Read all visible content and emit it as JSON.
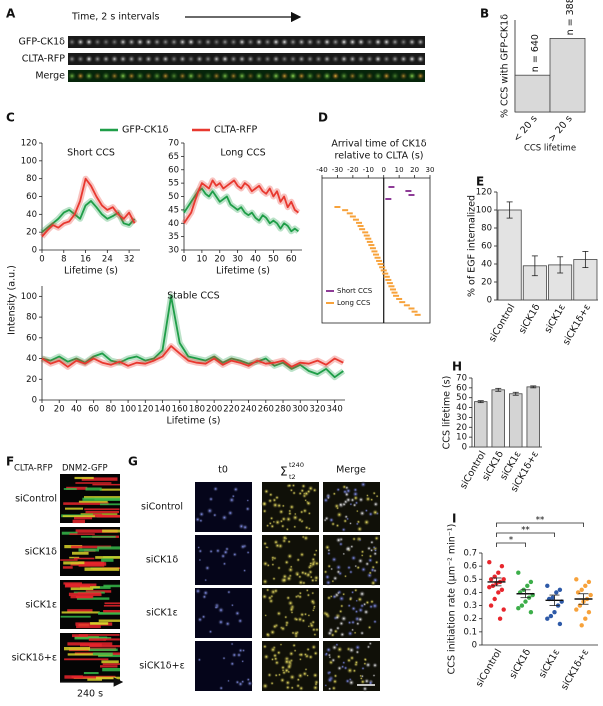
{
  "figure": {
    "A": {
      "panel": "A",
      "caption": "Time, 2 s intervals",
      "rows": [
        "GFP-CK1δ",
        "CLTA-RFP",
        "Merge"
      ]
    },
    "F": {
      "panel": "F",
      "channels": [
        "CLTA-RFP",
        "DNM2-GFP"
      ],
      "rows": [
        "siControl",
        "siCK1δ",
        "siCK1ε",
        "siCK1δ+ε"
      ],
      "time": "240 s"
    },
    "G": {
      "panel": "G",
      "columns": {
        "first": "t0",
        "sum": {
          "symbol": "Σ",
          "lower": "t2",
          "upper": "t240"
        },
        "last": "Merge"
      },
      "rows": [
        "siControl",
        "siCK1δ",
        "siCK1ε",
        "siCK1δ+ε"
      ]
    }
  },
  "chart_data": [
    {
      "panel": "B",
      "type": "bar",
      "categories": [
        "< 20 s",
        "> 20 s"
      ],
      "values": [
        16,
        32
      ],
      "n_labels": [
        "n = 640",
        "n = 388"
      ],
      "color": "#d9d9d9",
      "ylim": [
        0,
        40
      ],
      "ylabel": "% CCS with GFP-CK1δ",
      "xlabel": "CCS lifetime"
    },
    {
      "panel": "C",
      "type": "line",
      "title": "Short CCS",
      "xlabel": "Lifetime (s)",
      "ylabel": "Intensity (a.u.)",
      "x": [
        0,
        2,
        4,
        6,
        8,
        10,
        12,
        14,
        16,
        18,
        20,
        22,
        24,
        26,
        28,
        30,
        32,
        34
      ],
      "series": [
        {
          "name": "GFP-CK1δ",
          "color": "#1f9e48",
          "values": [
            20,
            25,
            30,
            35,
            42,
            45,
            40,
            35,
            50,
            55,
            48,
            40,
            35,
            38,
            42,
            30,
            28,
            35
          ]
        },
        {
          "name": "CLTA-RFP",
          "color": "#e8382f",
          "values": [
            15,
            22,
            28,
            25,
            30,
            32,
            40,
            55,
            80,
            72,
            60,
            50,
            45,
            48,
            40,
            35,
            42,
            30
          ]
        }
      ],
      "xlim": [
        0,
        36
      ],
      "ylim": [
        0,
        120
      ],
      "xticks": [
        0,
        8,
        16,
        24,
        32
      ],
      "yticks": [
        0,
        20,
        40,
        60,
        80,
        100,
        120
      ]
    },
    {
      "type": "line",
      "title": "Long CCS",
      "xlabel": "Lifetime (s)",
      "x": [
        0,
        2,
        4,
        6,
        8,
        10,
        12,
        14,
        16,
        18,
        20,
        22,
        24,
        26,
        28,
        30,
        32,
        34,
        36,
        38,
        40,
        42,
        44,
        46,
        48,
        50,
        52,
        54,
        56,
        58,
        60,
        62,
        64
      ],
      "series": [
        {
          "color": "#1f9e48",
          "values": [
            44,
            46,
            48,
            50,
            52,
            53,
            51,
            50,
            52,
            50,
            48,
            49,
            50,
            47,
            46,
            45,
            46,
            44,
            43,
            44,
            42,
            41,
            43,
            42,
            40,
            41,
            40,
            38,
            40,
            39,
            37,
            38,
            37
          ]
        },
        {
          "color": "#e8382f",
          "values": [
            40,
            42,
            44,
            48,
            52,
            55,
            54,
            53,
            56,
            54,
            55,
            53,
            54,
            55,
            56,
            54,
            53,
            55,
            54,
            52,
            53,
            54,
            52,
            51,
            53,
            50,
            52,
            48,
            50,
            46,
            48,
            45,
            44
          ]
        }
      ],
      "xlim": [
        0,
        66
      ],
      "ylim": [
        30,
        70
      ],
      "xticks": [
        0,
        10,
        20,
        30,
        40,
        50,
        60
      ],
      "yticks": [
        30,
        35,
        40,
        45,
        50,
        55,
        60,
        65,
        70
      ]
    },
    {
      "type": "line",
      "title": "Stable CCS",
      "xlabel": "Lifetime (s)",
      "x": [
        0,
        10,
        20,
        30,
        40,
        50,
        60,
        70,
        80,
        90,
        100,
        110,
        120,
        130,
        140,
        150,
        160,
        170,
        180,
        190,
        200,
        210,
        220,
        230,
        240,
        250,
        260,
        270,
        280,
        290,
        300,
        310,
        320,
        330,
        340,
        350
      ],
      "series": [
        {
          "color": "#1f9e48",
          "values": [
            40,
            38,
            42,
            37,
            40,
            36,
            42,
            45,
            38,
            36,
            40,
            42,
            38,
            40,
            48,
            100,
            55,
            42,
            40,
            38,
            42,
            36,
            40,
            38,
            35,
            37,
            40,
            33,
            36,
            30,
            34,
            28,
            25,
            30,
            22,
            28
          ]
        },
        {
          "color": "#e8382f",
          "values": [
            40,
            35,
            38,
            32,
            38,
            35,
            40,
            36,
            34,
            37,
            33,
            36,
            35,
            38,
            42,
            52,
            45,
            38,
            36,
            35,
            40,
            34,
            38,
            36,
            33,
            38,
            35,
            36,
            38,
            32,
            36,
            35,
            38,
            34,
            40,
            36
          ]
        }
      ],
      "xlim": [
        0,
        352
      ],
      "ylim": [
        0,
        110
      ],
      "xticks": [
        0,
        20,
        40,
        60,
        80,
        100,
        120,
        140,
        160,
        180,
        200,
        220,
        240,
        260,
        280,
        300,
        320,
        340
      ],
      "yticks": [
        0,
        20,
        40,
        60,
        80,
        100
      ]
    },
    {
      "panel": "D",
      "type": "arrival",
      "title": [
        "Arrival time of CK1δ",
        "relative to CLTA (s)"
      ],
      "xlim": [
        -40,
        30
      ],
      "xticks": [
        -40,
        -30,
        -20,
        -10,
        0,
        10,
        20,
        30
      ],
      "series": [
        {
          "name": "Short CCS",
          "color": "#8e3c97",
          "values": [
            5,
            16,
            18,
            3
          ]
        },
        {
          "name": "Long CCS",
          "color": "#f7a23b",
          "values": [
            -30,
            -25,
            -22,
            -20,
            -18,
            -16,
            -15,
            -14,
            -12,
            -11,
            -10,
            -9,
            -8,
            -7,
            -6,
            -5,
            -4,
            -3,
            -2,
            -1,
            0,
            1,
            2,
            3,
            4,
            5,
            6,
            7,
            8,
            10,
            12,
            15,
            18,
            20,
            22
          ]
        }
      ]
    },
    {
      "panel": "E",
      "type": "bar",
      "categories": [
        "siControl",
        "siCK1δ",
        "siCK1ε",
        "siCK1δ+ε"
      ],
      "values": [
        100,
        38,
        39,
        45
      ],
      "errors": [
        9,
        11,
        9,
        9
      ],
      "color": "#e3e3e3",
      "ylim": [
        0,
        120
      ],
      "yticks": [
        0,
        20,
        40,
        60,
        80,
        100,
        120
      ],
      "ylabel": "% of EGF internalized"
    },
    {
      "panel": "H",
      "type": "bar",
      "categories": [
        "siControl",
        "siCK1δ",
        "siCK1ε",
        "siCK1δ+ε"
      ],
      "values": [
        46,
        58,
        54,
        61
      ],
      "errors": [
        1,
        1.5,
        1.5,
        1
      ],
      "color": "#d4d4d4",
      "ylim": [
        0,
        70
      ],
      "yticks": [
        0,
        10,
        20,
        30,
        40,
        50,
        60,
        70
      ],
      "ylabel": "CCS lifetime (s)"
    },
    {
      "panel": "I",
      "type": "dot",
      "categories": [
        "siControl",
        "siCK1δ",
        "siCK1ε",
        "siCK1δ+ε"
      ],
      "values": [
        0.48,
        0.39,
        0.34,
        0.35
      ],
      "errors": [
        0.03,
        0.03,
        0.04,
        0.04
      ],
      "colors": [
        "#e8262d",
        "#3cae49",
        "#2e5aa8",
        "#f7a23b"
      ],
      "points": [
        [
          0.63,
          0.6,
          0.55,
          0.52,
          0.5,
          0.5,
          0.48,
          0.47,
          0.45,
          0.44,
          0.42,
          0.4,
          0.35,
          0.3,
          0.27,
          0.2
        ],
        [
          0.55,
          0.48,
          0.45,
          0.42,
          0.4,
          0.38,
          0.36,
          0.33,
          0.3,
          0.28,
          0.25
        ],
        [
          0.45,
          0.42,
          0.4,
          0.36,
          0.35,
          0.33,
          0.3,
          0.25,
          0.22,
          0.2,
          0.16
        ],
        [
          0.5,
          0.48,
          0.45,
          0.42,
          0.4,
          0.38,
          0.35,
          0.33,
          0.3,
          0.27,
          0.25,
          0.2,
          0.15
        ]
      ],
      "significance_labels": [
        "*",
        "**",
        "**"
      ],
      "ylim": [
        0,
        0.7
      ],
      "yticks": [
        0,
        0.1,
        0.2,
        0.3,
        0.4,
        0.5,
        0.6,
        0.7
      ],
      "ylabel": "CCS initiation rate (μm⁻² min⁻¹)"
    }
  ]
}
